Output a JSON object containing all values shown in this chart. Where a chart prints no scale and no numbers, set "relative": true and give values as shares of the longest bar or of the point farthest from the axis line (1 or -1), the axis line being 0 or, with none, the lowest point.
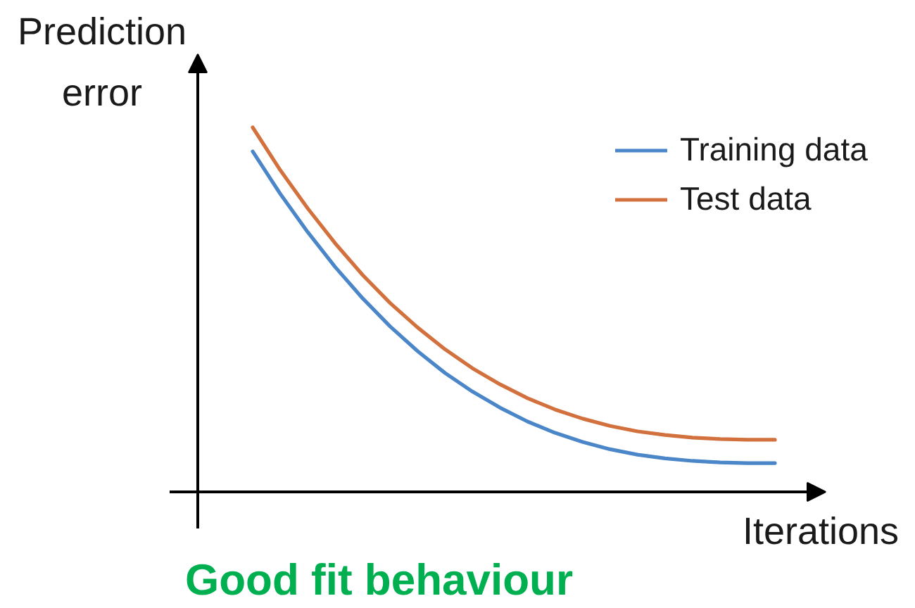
{
  "chart_data": {
    "type": "line",
    "title": "Good fit behaviour",
    "xlabel": "Iterations",
    "ylabel": "Prediction error",
    "relative": true,
    "legend": "top right",
    "categories": [
      null,
      null,
      null,
      null,
      null,
      null,
      null,
      null,
      null,
      null,
      null,
      null,
      null,
      null,
      null,
      null,
      null,
      null,
      null,
      null
    ],
    "series": [
      {
        "name": "Training data",
        "color": "#4a86c8",
        "values": [
          0.934,
          0.818,
          0.713,
          0.617,
          0.531,
          0.454,
          0.386,
          0.326,
          0.275,
          0.231,
          0.193,
          0.162,
          0.137,
          0.117,
          0.102,
          0.092,
          0.085,
          0.081,
          0.079,
          0.079
        ]
      },
      {
        "name": "Test data",
        "color": "#d2713d",
        "values": [
          1.0,
          0.883,
          0.778,
          0.682,
          0.595,
          0.518,
          0.451,
          0.391,
          0.339,
          0.295,
          0.257,
          0.226,
          0.201,
          0.181,
          0.166,
          0.156,
          0.149,
          0.145,
          0.143,
          0.143
        ]
      }
    ]
  }
}
